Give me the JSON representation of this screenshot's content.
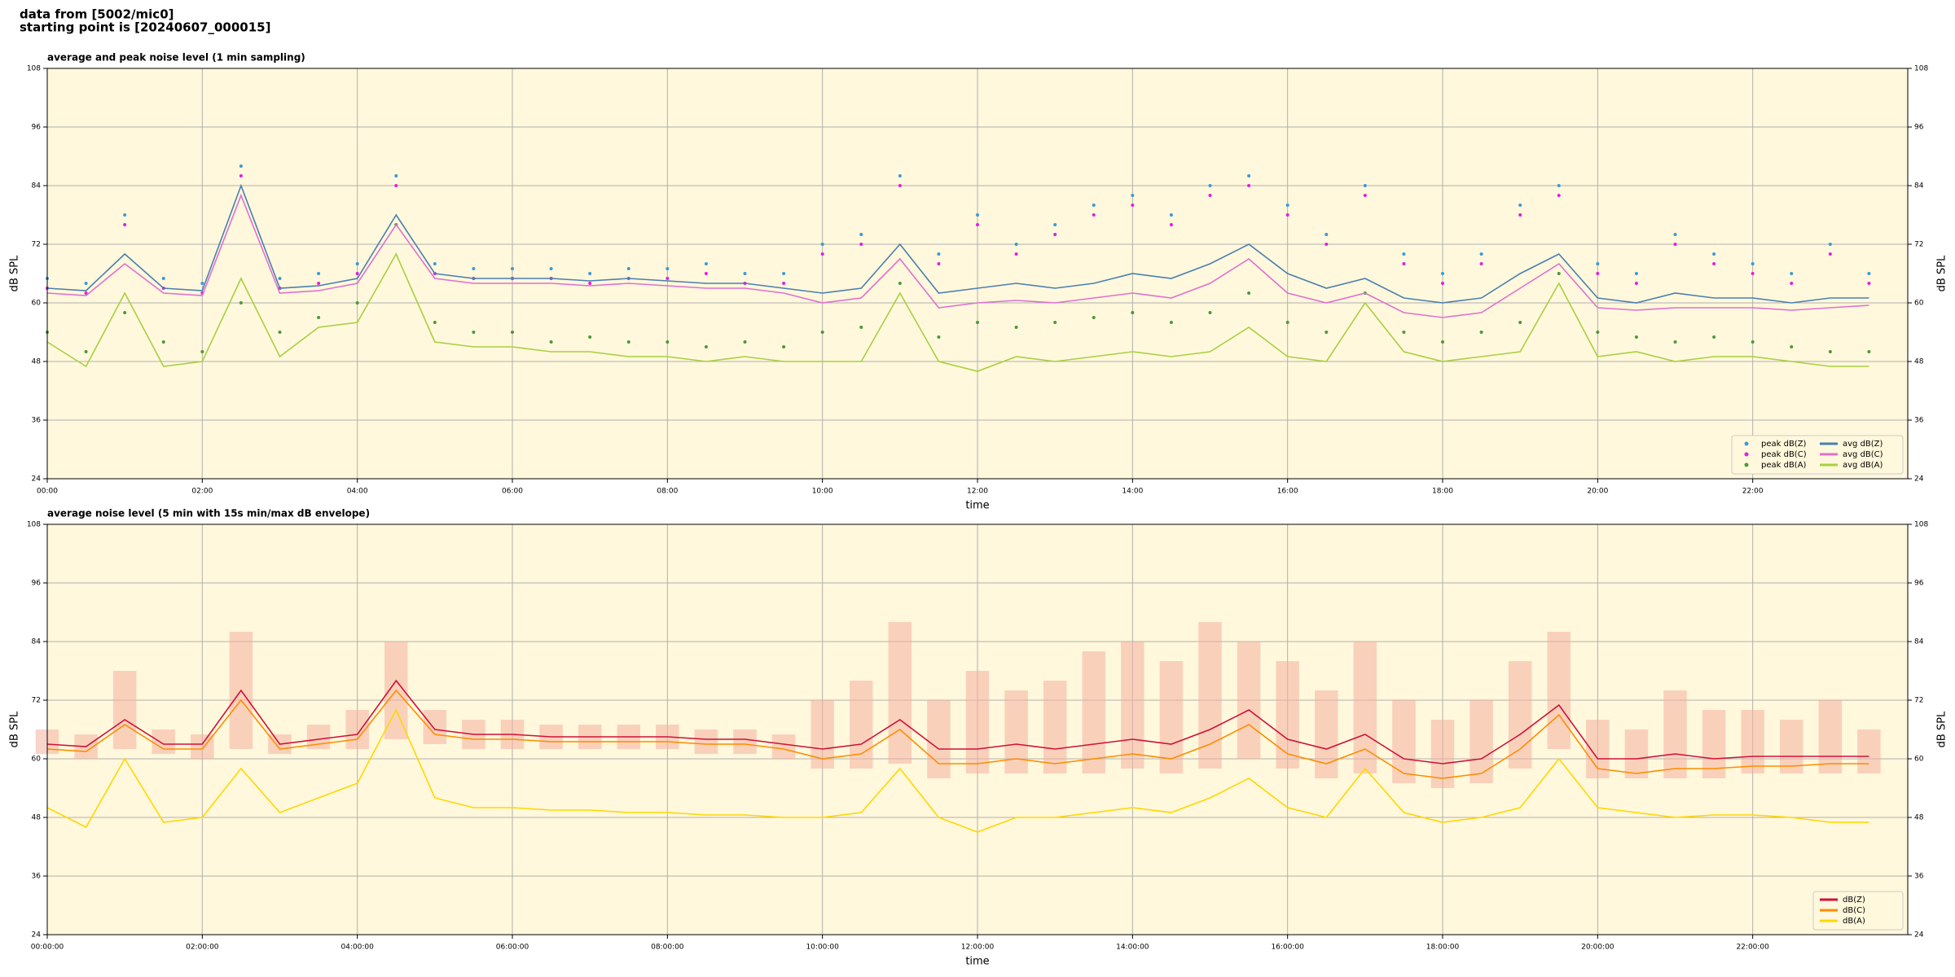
{
  "header": [
    "data from [5002/mic0]",
    "starting point is [20240607_000015]"
  ],
  "chart_data": [
    {
      "type": "line",
      "title": "average and peak noise level (1 min sampling)",
      "xlabel": "time",
      "ylabel": "dB SPL",
      "x": [
        0,
        0.5,
        1,
        1.5,
        2,
        2.5,
        3,
        3.5,
        4,
        4.5,
        5,
        5.5,
        6,
        6.5,
        7,
        7.5,
        8,
        8.5,
        9,
        9.5,
        10,
        10.5,
        11,
        11.5,
        12,
        12.5,
        13,
        13.5,
        14,
        14.5,
        15,
        15.5,
        16,
        16.5,
        17,
        17.5,
        18,
        18.5,
        19,
        19.5,
        20,
        20.5,
        21,
        21.5,
        22,
        22.5,
        23,
        23.5
      ],
      "xlim": [
        0,
        24
      ],
      "xticks": [
        {
          "value": 0,
          "label": "00:00"
        },
        {
          "value": 2,
          "label": "02:00"
        },
        {
          "value": 4,
          "label": "04:00"
        },
        {
          "value": 6,
          "label": "06:00"
        },
        {
          "value": 8,
          "label": "08:00"
        },
        {
          "value": 10,
          "label": "10:00"
        },
        {
          "value": 12,
          "label": "12:00"
        },
        {
          "value": 14,
          "label": "14:00"
        },
        {
          "value": 16,
          "label": "16:00"
        },
        {
          "value": 18,
          "label": "18:00"
        },
        {
          "value": 20,
          "label": "20:00"
        },
        {
          "value": 22,
          "label": "22:00"
        }
      ],
      "ylim": [
        24,
        108
      ],
      "yticks": [
        24,
        36,
        48,
        60,
        72,
        84,
        96,
        108
      ],
      "grid": true,
      "legend": "lower right",
      "legend_columns": 2,
      "series": [
        {
          "name": "peak dB(Z)",
          "kind": "scatter",
          "color": "#3a9ad9",
          "values": [
            65,
            64,
            78,
            65,
            64,
            88,
            65,
            66,
            68,
            86,
            68,
            67,
            67,
            67,
            66,
            67,
            67,
            68,
            66,
            66,
            72,
            74,
            86,
            70,
            78,
            72,
            76,
            80,
            82,
            78,
            84,
            86,
            80,
            74,
            84,
            70,
            66,
            70,
            80,
            84,
            68,
            66,
            74,
            70,
            68,
            66,
            72,
            66
          ]
        },
        {
          "name": "peak dB(C)",
          "kind": "scatter",
          "color": "#e020e0",
          "values": [
            63,
            62,
            76,
            63,
            62,
            86,
            63,
            64,
            66,
            84,
            66,
            65,
            65,
            65,
            64,
            65,
            65,
            66,
            64,
            64,
            70,
            72,
            84,
            68,
            76,
            70,
            74,
            78,
            80,
            76,
            82,
            84,
            78,
            72,
            82,
            68,
            64,
            68,
            78,
            82,
            66,
            64,
            72,
            68,
            66,
            64,
            70,
            64
          ]
        },
        {
          "name": "peak dB(A)",
          "kind": "scatter",
          "color": "#4a9a3a",
          "values": [
            54,
            50,
            58,
            52,
            50,
            60,
            54,
            57,
            60,
            76,
            56,
            54,
            54,
            52,
            53,
            52,
            52,
            51,
            52,
            51,
            54,
            55,
            64,
            53,
            56,
            55,
            56,
            57,
            58,
            56,
            58,
            62,
            56,
            54,
            62,
            54,
            52,
            54,
            56,
            66,
            54,
            53,
            52,
            53,
            52,
            51,
            50,
            50
          ]
        },
        {
          "name": "avg dB(Z)",
          "kind": "line",
          "color": "#4a7fb0",
          "values": [
            63,
            62.5,
            70,
            63,
            62.5,
            84,
            63,
            63.5,
            65,
            78,
            66,
            65,
            65,
            65,
            64.5,
            65,
            64.5,
            64,
            64,
            63,
            62,
            63,
            72,
            62,
            63,
            64,
            63,
            64,
            66,
            65,
            68,
            72,
            66,
            63,
            65,
            61,
            60,
            61,
            66,
            70,
            61,
            60,
            62,
            61,
            61,
            60,
            61,
            61
          ]
        },
        {
          "name": "avg dB(C)",
          "kind": "line",
          "color": "#e070d0",
          "values": [
            62,
            61.5,
            68,
            62,
            61.5,
            82,
            62,
            62.5,
            64,
            76,
            65,
            64,
            64,
            64,
            63.5,
            64,
            63.5,
            63,
            63,
            62,
            60,
            61,
            69,
            59,
            60,
            60.5,
            60,
            61,
            62,
            61,
            64,
            69,
            62,
            60,
            62,
            58,
            57,
            58,
            63,
            68,
            59,
            58.5,
            59,
            59,
            59,
            58.5,
            59,
            59.5
          ]
        },
        {
          "name": "avg dB(A)",
          "kind": "line",
          "color": "#a8d040",
          "values": [
            52,
            47,
            62,
            47,
            48,
            65,
            49,
            55,
            56,
            70,
            52,
            51,
            51,
            50,
            50,
            49,
            49,
            48,
            49,
            48,
            48,
            48,
            62,
            48,
            46,
            49,
            48,
            49,
            50,
            49,
            50,
            55,
            49,
            48,
            60,
            50,
            48,
            49,
            50,
            64,
            49,
            50,
            48,
            49,
            49,
            48,
            47,
            47
          ]
        }
      ]
    },
    {
      "type": "line",
      "title": "average noise level (5 min with 15s min/max dB envelope)",
      "xlabel": "time",
      "ylabel": "dB SPL",
      "x": [
        0,
        0.5,
        1,
        1.5,
        2,
        2.5,
        3,
        3.5,
        4,
        4.5,
        5,
        5.5,
        6,
        6.5,
        7,
        7.5,
        8,
        8.5,
        9,
        9.5,
        10,
        10.5,
        11,
        11.5,
        12,
        12.5,
        13,
        13.5,
        14,
        14.5,
        15,
        15.5,
        16,
        16.5,
        17,
        17.5,
        18,
        18.5,
        19,
        19.5,
        20,
        20.5,
        21,
        21.5,
        22,
        22.5,
        23,
        23.5
      ],
      "xlim": [
        0,
        24
      ],
      "xticks": [
        {
          "value": 0,
          "label": "00:00:00"
        },
        {
          "value": 2,
          "label": "02:00:00"
        },
        {
          "value": 4,
          "label": "04:00:00"
        },
        {
          "value": 6,
          "label": "06:00:00"
        },
        {
          "value": 8,
          "label": "08:00:00"
        },
        {
          "value": 10,
          "label": "10:00:00"
        },
        {
          "value": 12,
          "label": "12:00:00"
        },
        {
          "value": 14,
          "label": "14:00:00"
        },
        {
          "value": 16,
          "label": "16:00:00"
        },
        {
          "value": 18,
          "label": "18:00:00"
        },
        {
          "value": 20,
          "label": "20:00:00"
        },
        {
          "value": 22,
          "label": "22:00:00"
        }
      ],
      "ylim": [
        24,
        108
      ],
      "yticks": [
        24,
        36,
        48,
        60,
        72,
        84,
        96,
        108
      ],
      "grid": true,
      "legend": "lower right",
      "legend_columns": 1,
      "envelope": {
        "color": "#f4b0a0",
        "low": [
          61,
          60,
          62,
          61,
          60,
          62,
          61,
          62,
          62,
          64,
          63,
          62,
          62,
          62,
          62,
          62,
          62,
          61,
          61,
          60,
          58,
          58,
          59,
          56,
          57,
          57,
          57,
          57,
          58,
          57,
          58,
          60,
          58,
          56,
          57,
          55,
          54,
          55,
          58,
          62,
          56,
          56,
          56,
          56,
          57,
          57,
          57,
          57
        ],
        "high": [
          66,
          65,
          78,
          66,
          65,
          86,
          65,
          67,
          70,
          84,
          70,
          68,
          68,
          67,
          67,
          67,
          67,
          66,
          66,
          65,
          72,
          76,
          88,
          72,
          78,
          74,
          76,
          82,
          84,
          80,
          88,
          84,
          80,
          74,
          84,
          72,
          68,
          72,
          80,
          86,
          68,
          66,
          74,
          70,
          70,
          68,
          72,
          66
        ]
      },
      "series": [
        {
          "name": "dB(Z)",
          "kind": "line",
          "color": "#d0103a",
          "values": [
            63,
            62.5,
            68,
            63,
            63,
            74,
            63,
            64,
            65,
            76,
            66,
            65,
            65,
            64.5,
            64.5,
            64.5,
            64.5,
            64,
            64,
            63,
            62,
            63,
            68,
            62,
            62,
            63,
            62,
            63,
            64,
            63,
            66,
            70,
            64,
            62,
            65,
            60,
            59,
            60,
            65,
            71,
            60,
            60,
            61,
            60,
            60.5,
            60.5,
            60.5,
            60.5
          ]
        },
        {
          "name": "dB(C)",
          "kind": "line",
          "color": "#ff8c00",
          "values": [
            62,
            61.5,
            67,
            62,
            62,
            72,
            62,
            63,
            64,
            74,
            65,
            64,
            64,
            63.5,
            63.5,
            63.5,
            63.5,
            63,
            63,
            62,
            60,
            61,
            66,
            59,
            59,
            60,
            59,
            60,
            61,
            60,
            63,
            67,
            61,
            59,
            62,
            57,
            56,
            57,
            62,
            69,
            58,
            57,
            58,
            58,
            58.5,
            58.5,
            59,
            59
          ]
        },
        {
          "name": "dB(A)",
          "kind": "line",
          "color": "#ffd700",
          "values": [
            50,
            46,
            60,
            47,
            48,
            58,
            49,
            52,
            55,
            70,
            52,
            50,
            50,
            49.5,
            49.5,
            49,
            49,
            48.5,
            48.5,
            48,
            48,
            49,
            58,
            48,
            45,
            48,
            48,
            49,
            50,
            49,
            52,
            56,
            50,
            48,
            58,
            49,
            47,
            48,
            50,
            60,
            50,
            49,
            48,
            48.5,
            48.5,
            48,
            47,
            47
          ]
        }
      ]
    }
  ]
}
